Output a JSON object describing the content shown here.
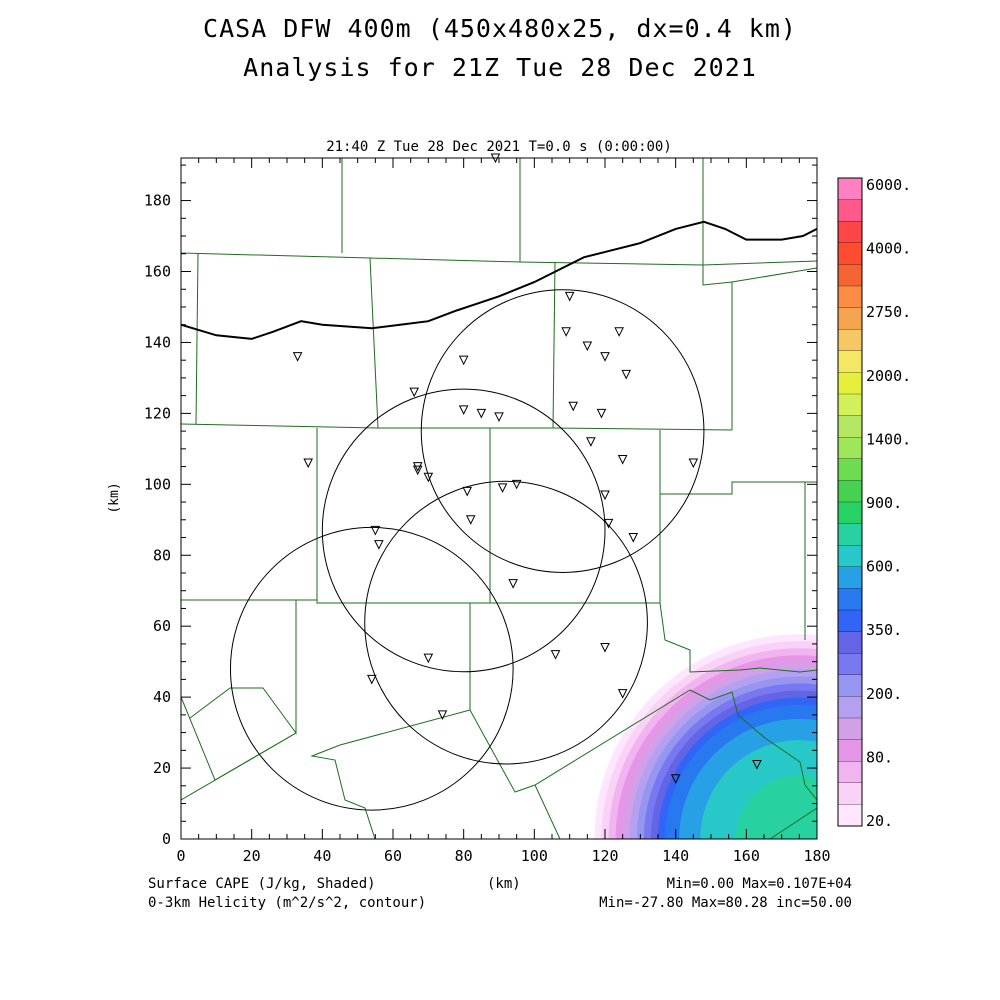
{
  "header": {
    "title_line1": "CASA DFW 400m (450x480x25, dx=0.4 km)",
    "title_line2": "Analysis for 21Z Tue 28 Dec 2021"
  },
  "plot": {
    "subtitle": "21:40 Z Tue 28 Dec 2021   T=0.0 s (0:00:00)",
    "xlabel": "(km)",
    "ylabel": "(km)"
  },
  "footer": {
    "shaded_label": "Surface CAPE (J/kg, Shaded)",
    "contour_label": "0-3km Helicity (m^2/s^2, contour)",
    "x_unit": "(km)",
    "shaded_stats": "Min=0.00 Max=0.107E+04",
    "contour_stats": "Min=-27.80 Max=80.28 inc=50.00"
  },
  "chart_data": {
    "type": "heatmap",
    "title": "CASA DFW 400m (450x480x25, dx=0.4 km)",
    "subtitle": "Analysis for 21Z Tue 28 Dec 2021",
    "xlim": [
      0,
      180
    ],
    "ylim": [
      0,
      192
    ],
    "x_ticks": [
      0,
      20,
      40,
      60,
      80,
      100,
      120,
      140,
      160,
      180
    ],
    "y_ticks": [
      0,
      20,
      40,
      60,
      80,
      100,
      120,
      140,
      160,
      180
    ],
    "colorbar": {
      "tick_labels": [
        "6000.",
        "4000.",
        "2750.",
        "2000.",
        "1400.",
        "900.",
        "600.",
        "350.",
        "200.",
        "80.",
        "20."
      ],
      "colors": [
        "#ff80c0",
        "#ff5a8c",
        "#ff4646",
        "#ff4b2e",
        "#f56432",
        "#fa8c46",
        "#f5a550",
        "#f5c864",
        "#f5e664",
        "#e6f03c",
        "#d2f05a",
        "#b4e664",
        "#a0e65a",
        "#6edc50",
        "#46d250",
        "#28d264",
        "#28d2a0",
        "#28c8c8",
        "#28a0e6",
        "#2878f0",
        "#3264f5",
        "#6464e6",
        "#7878f0",
        "#9696f0",
        "#b4a0f0",
        "#d2a0e6",
        "#e696e6",
        "#f0b4f0",
        "#fad2f5",
        "#ffe6ff"
      ]
    },
    "cape_field": {
      "center": [
        175,
        0
      ],
      "rings": [
        {
          "radius_km": 58,
          "value": 20
        },
        {
          "radius_km": 56,
          "value": 80
        },
        {
          "radius_km": 54,
          "value": 120
        },
        {
          "radius_km": 52,
          "value": 160
        },
        {
          "radius_km": 50,
          "value": 200
        },
        {
          "radius_km": 48,
          "value": 280
        },
        {
          "radius_km": 46,
          "value": 350
        },
        {
          "radius_km": 44,
          "value": 400
        },
        {
          "radius_km": 42,
          "value": 500
        },
        {
          "radius_km": 40,
          "value": 600
        },
        {
          "radius_km": 38,
          "value": 700
        },
        {
          "radius_km": 34,
          "value": 800
        },
        {
          "radius_km": 28,
          "value": 900
        },
        {
          "radius_km": 18,
          "value": 1000
        }
      ]
    },
    "helicity_contour_km": [
      [
        0,
        145
      ],
      [
        10,
        142
      ],
      [
        20,
        141
      ],
      [
        26,
        143
      ],
      [
        34,
        146
      ],
      [
        40,
        145
      ],
      [
        54,
        144
      ],
      [
        62,
        145
      ],
      [
        70,
        146
      ],
      [
        78,
        149
      ],
      [
        84,
        151
      ],
      [
        90,
        153
      ],
      [
        100,
        157
      ],
      [
        106,
        160
      ],
      [
        114,
        164
      ],
      [
        122,
        166
      ],
      [
        130,
        168
      ],
      [
        140,
        172
      ],
      [
        148,
        174
      ],
      [
        154,
        172
      ],
      [
        160,
        169
      ],
      [
        170,
        169
      ],
      [
        176,
        170
      ],
      [
        180,
        172
      ]
    ],
    "radar_rings_km": [
      {
        "center": [
          108,
          115
        ],
        "radius": 40
      },
      {
        "center": [
          80,
          87
        ],
        "radius": 40
      },
      {
        "center": [
          92,
          61
        ],
        "radius": 40
      },
      {
        "center": [
          54,
          48
        ],
        "radius": 40
      }
    ],
    "stations_km": [
      [
        89,
        192
      ],
      [
        110,
        153
      ],
      [
        109,
        143
      ],
      [
        115,
        139
      ],
      [
        124,
        143
      ],
      [
        120,
        136
      ],
      [
        126,
        131
      ],
      [
        33,
        136
      ],
      [
        80,
        135
      ],
      [
        66,
        126
      ],
      [
        80,
        121
      ],
      [
        85,
        120
      ],
      [
        90,
        119
      ],
      [
        111,
        122
      ],
      [
        119,
        120
      ],
      [
        116,
        112
      ],
      [
        125,
        107
      ],
      [
        145,
        106
      ],
      [
        36,
        106
      ],
      [
        67,
        105
      ],
      [
        67,
        104
      ],
      [
        70,
        102
      ],
      [
        81,
        98
      ],
      [
        91,
        99
      ],
      [
        95,
        100
      ],
      [
        120,
        97
      ],
      [
        121,
        89
      ],
      [
        128,
        85
      ],
      [
        82,
        90
      ],
      [
        55,
        87
      ],
      [
        56,
        83
      ],
      [
        94,
        72
      ],
      [
        70,
        51
      ],
      [
        106,
        52
      ],
      [
        120,
        54
      ],
      [
        54,
        45
      ],
      [
        125,
        41
      ],
      [
        74,
        35
      ],
      [
        140,
        17
      ],
      [
        163,
        21
      ]
    ]
  }
}
